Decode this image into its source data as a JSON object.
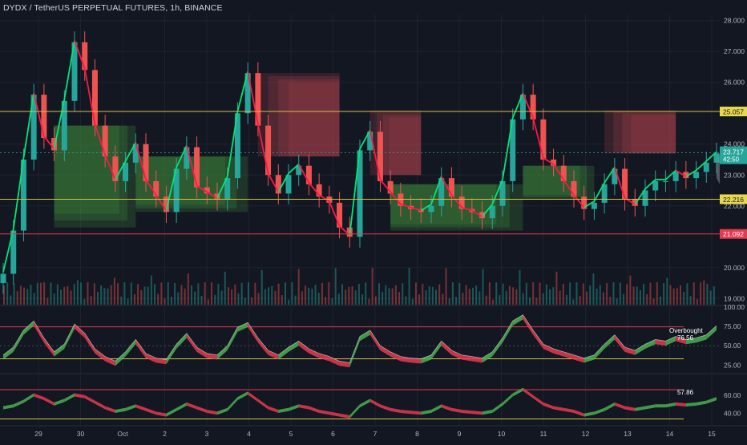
{
  "header": {
    "symbol_line": "DYDX / TetherUS PERPETUAL FUTURES, 1h, BINANCE"
  },
  "colors": {
    "background": "#131722",
    "up": "#26a69a",
    "down": "#ef5350",
    "signal_up": "#00e676",
    "signal_down": "#ff1744",
    "level_yellow": "#d4c04a",
    "level_red": "#e53950",
    "last_price_bg": "#26a69a",
    "grid": "#1e222d"
  },
  "chart_data": [
    {
      "type": "candlestick",
      "title": "DYDX / TetherUS PERPETUAL FUTURES, 1h, BINANCE",
      "ylim": [
        18.8,
        28.2
      ],
      "grid": true,
      "y_ticks": [
        "28.000",
        "27.000",
        "26.000",
        "24.000",
        "23.000",
        "22.000",
        "20.000",
        "19.000"
      ],
      "x_ticks": [
        "29",
        "30",
        "Oct",
        "2",
        "3",
        "4",
        "5",
        "6",
        "7",
        "8",
        "9",
        "10",
        "11",
        "12",
        "13",
        "14",
        "15"
      ],
      "x": [
        0,
        1,
        2,
        3,
        4,
        5,
        6,
        7,
        8,
        9,
        10,
        11,
        12,
        13,
        14,
        15,
        16,
        17,
        18,
        19,
        20,
        21,
        22,
        23,
        24,
        25,
        26,
        27,
        28,
        29,
        30,
        31,
        32,
        33,
        34,
        35,
        36,
        37,
        38,
        39,
        40,
        41,
        42,
        43,
        44,
        45,
        46,
        47,
        48,
        49,
        50,
        51,
        52,
        53,
        54,
        55,
        56,
        57,
        58,
        59,
        60,
        61,
        62,
        63,
        64,
        65,
        66,
        67,
        68,
        69,
        70
      ],
      "close": [
        19.8,
        21.2,
        23.5,
        25.6,
        24.2,
        23.8,
        25.4,
        27.3,
        26.4,
        24.6,
        23.6,
        22.8,
        23.4,
        24.0,
        22.8,
        22.3,
        21.8,
        23.2,
        23.9,
        22.6,
        22.4,
        22.2,
        22.9,
        25.0,
        26.3,
        24.6,
        23.0,
        22.4,
        23.0,
        23.3,
        22.7,
        22.3,
        22.1,
        21.3,
        21.0,
        23.8,
        24.4,
        22.8,
        22.4,
        22.0,
        21.9,
        21.8,
        22.0,
        22.9,
        22.3,
        21.9,
        21.8,
        21.6,
        22.0,
        22.8,
        24.8,
        25.6,
        24.8,
        23.5,
        23.3,
        22.8,
        22.3,
        21.9,
        22.1,
        22.7,
        23.2,
        22.2,
        22.0,
        22.5,
        22.8,
        22.8,
        23.1,
        22.9,
        23.1,
        23.4,
        23.7
      ],
      "levels": [
        {
          "label": "25.057",
          "value": 25.057,
          "style": "yellow"
        },
        {
          "label": "22.216",
          "value": 22.216,
          "style": "yellow"
        },
        {
          "label": "21.092",
          "value": 21.092,
          "style": "red"
        }
      ],
      "last_price": {
        "label": "23.717",
        "countdown": "42:50",
        "value": 23.717
      },
      "resistance_zones": [
        {
          "x0": 25,
          "x1": 33,
          "top": 26.3,
          "bottom": 23.6
        },
        {
          "x0": 36,
          "x1": 41,
          "top": 25.1,
          "bottom": 23.0
        },
        {
          "x0": 59,
          "x1": 66,
          "top": 25.1,
          "bottom": 23.7
        }
      ],
      "support_zones": [
        {
          "x0": 5,
          "x1": 13,
          "top": 24.6,
          "bottom": 21.3
        },
        {
          "x0": 13,
          "x1": 24,
          "top": 23.6,
          "bottom": 21.8
        },
        {
          "x0": 38,
          "x1": 51,
          "top": 22.7,
          "bottom": 21.2
        },
        {
          "x0": 51,
          "x1": 58,
          "top": 23.3,
          "bottom": 22.2
        }
      ]
    },
    {
      "type": "area",
      "title": "",
      "ylim": [
        18,
        100
      ],
      "y_ticks": [
        "100.00",
        "75.00",
        "50.00",
        "25.00"
      ],
      "hlines": [
        {
          "value": 74.5,
          "color": "red"
        },
        {
          "value": 33,
          "color": "yellow"
        }
      ],
      "values": [
        38,
        48,
        70,
        82,
        60,
        42,
        52,
        78,
        66,
        46,
        36,
        30,
        42,
        58,
        40,
        34,
        32,
        52,
        66,
        48,
        40,
        38,
        50,
        74,
        80,
        60,
        44,
        38,
        48,
        56,
        46,
        40,
        36,
        30,
        28,
        62,
        70,
        50,
        42,
        36,
        34,
        33,
        38,
        56,
        44,
        38,
        36,
        34,
        42,
        60,
        82,
        90,
        70,
        52,
        46,
        42,
        38,
        34,
        38,
        52,
        64,
        48,
        44,
        52,
        58,
        56,
        62,
        58,
        60,
        64,
        76
      ],
      "annotation": {
        "line1": "Overbought",
        "line2": "76.56"
      }
    },
    {
      "type": "area",
      "title": "",
      "ylim": [
        30,
        80
      ],
      "y_ticks": [
        "60.00",
        "40.00"
      ],
      "hlines": [
        {
          "value": 66,
          "color": "red"
        },
        {
          "value": 34,
          "color": "yellow"
        }
      ],
      "values": [
        48,
        50,
        55,
        62,
        58,
        52,
        56,
        62,
        60,
        54,
        48,
        44,
        46,
        50,
        46,
        42,
        40,
        46,
        52,
        48,
        44,
        42,
        46,
        58,
        64,
        56,
        48,
        44,
        46,
        50,
        48,
        44,
        42,
        40,
        38,
        50,
        56,
        50,
        46,
        44,
        43,
        42,
        44,
        50,
        46,
        44,
        43,
        42,
        44,
        52,
        62,
        68,
        60,
        52,
        48,
        46,
        44,
        40,
        42,
        46,
        52,
        48,
        46,
        48,
        50,
        50,
        52,
        51,
        52,
        54,
        58
      ],
      "value_label": "57.86"
    }
  ]
}
